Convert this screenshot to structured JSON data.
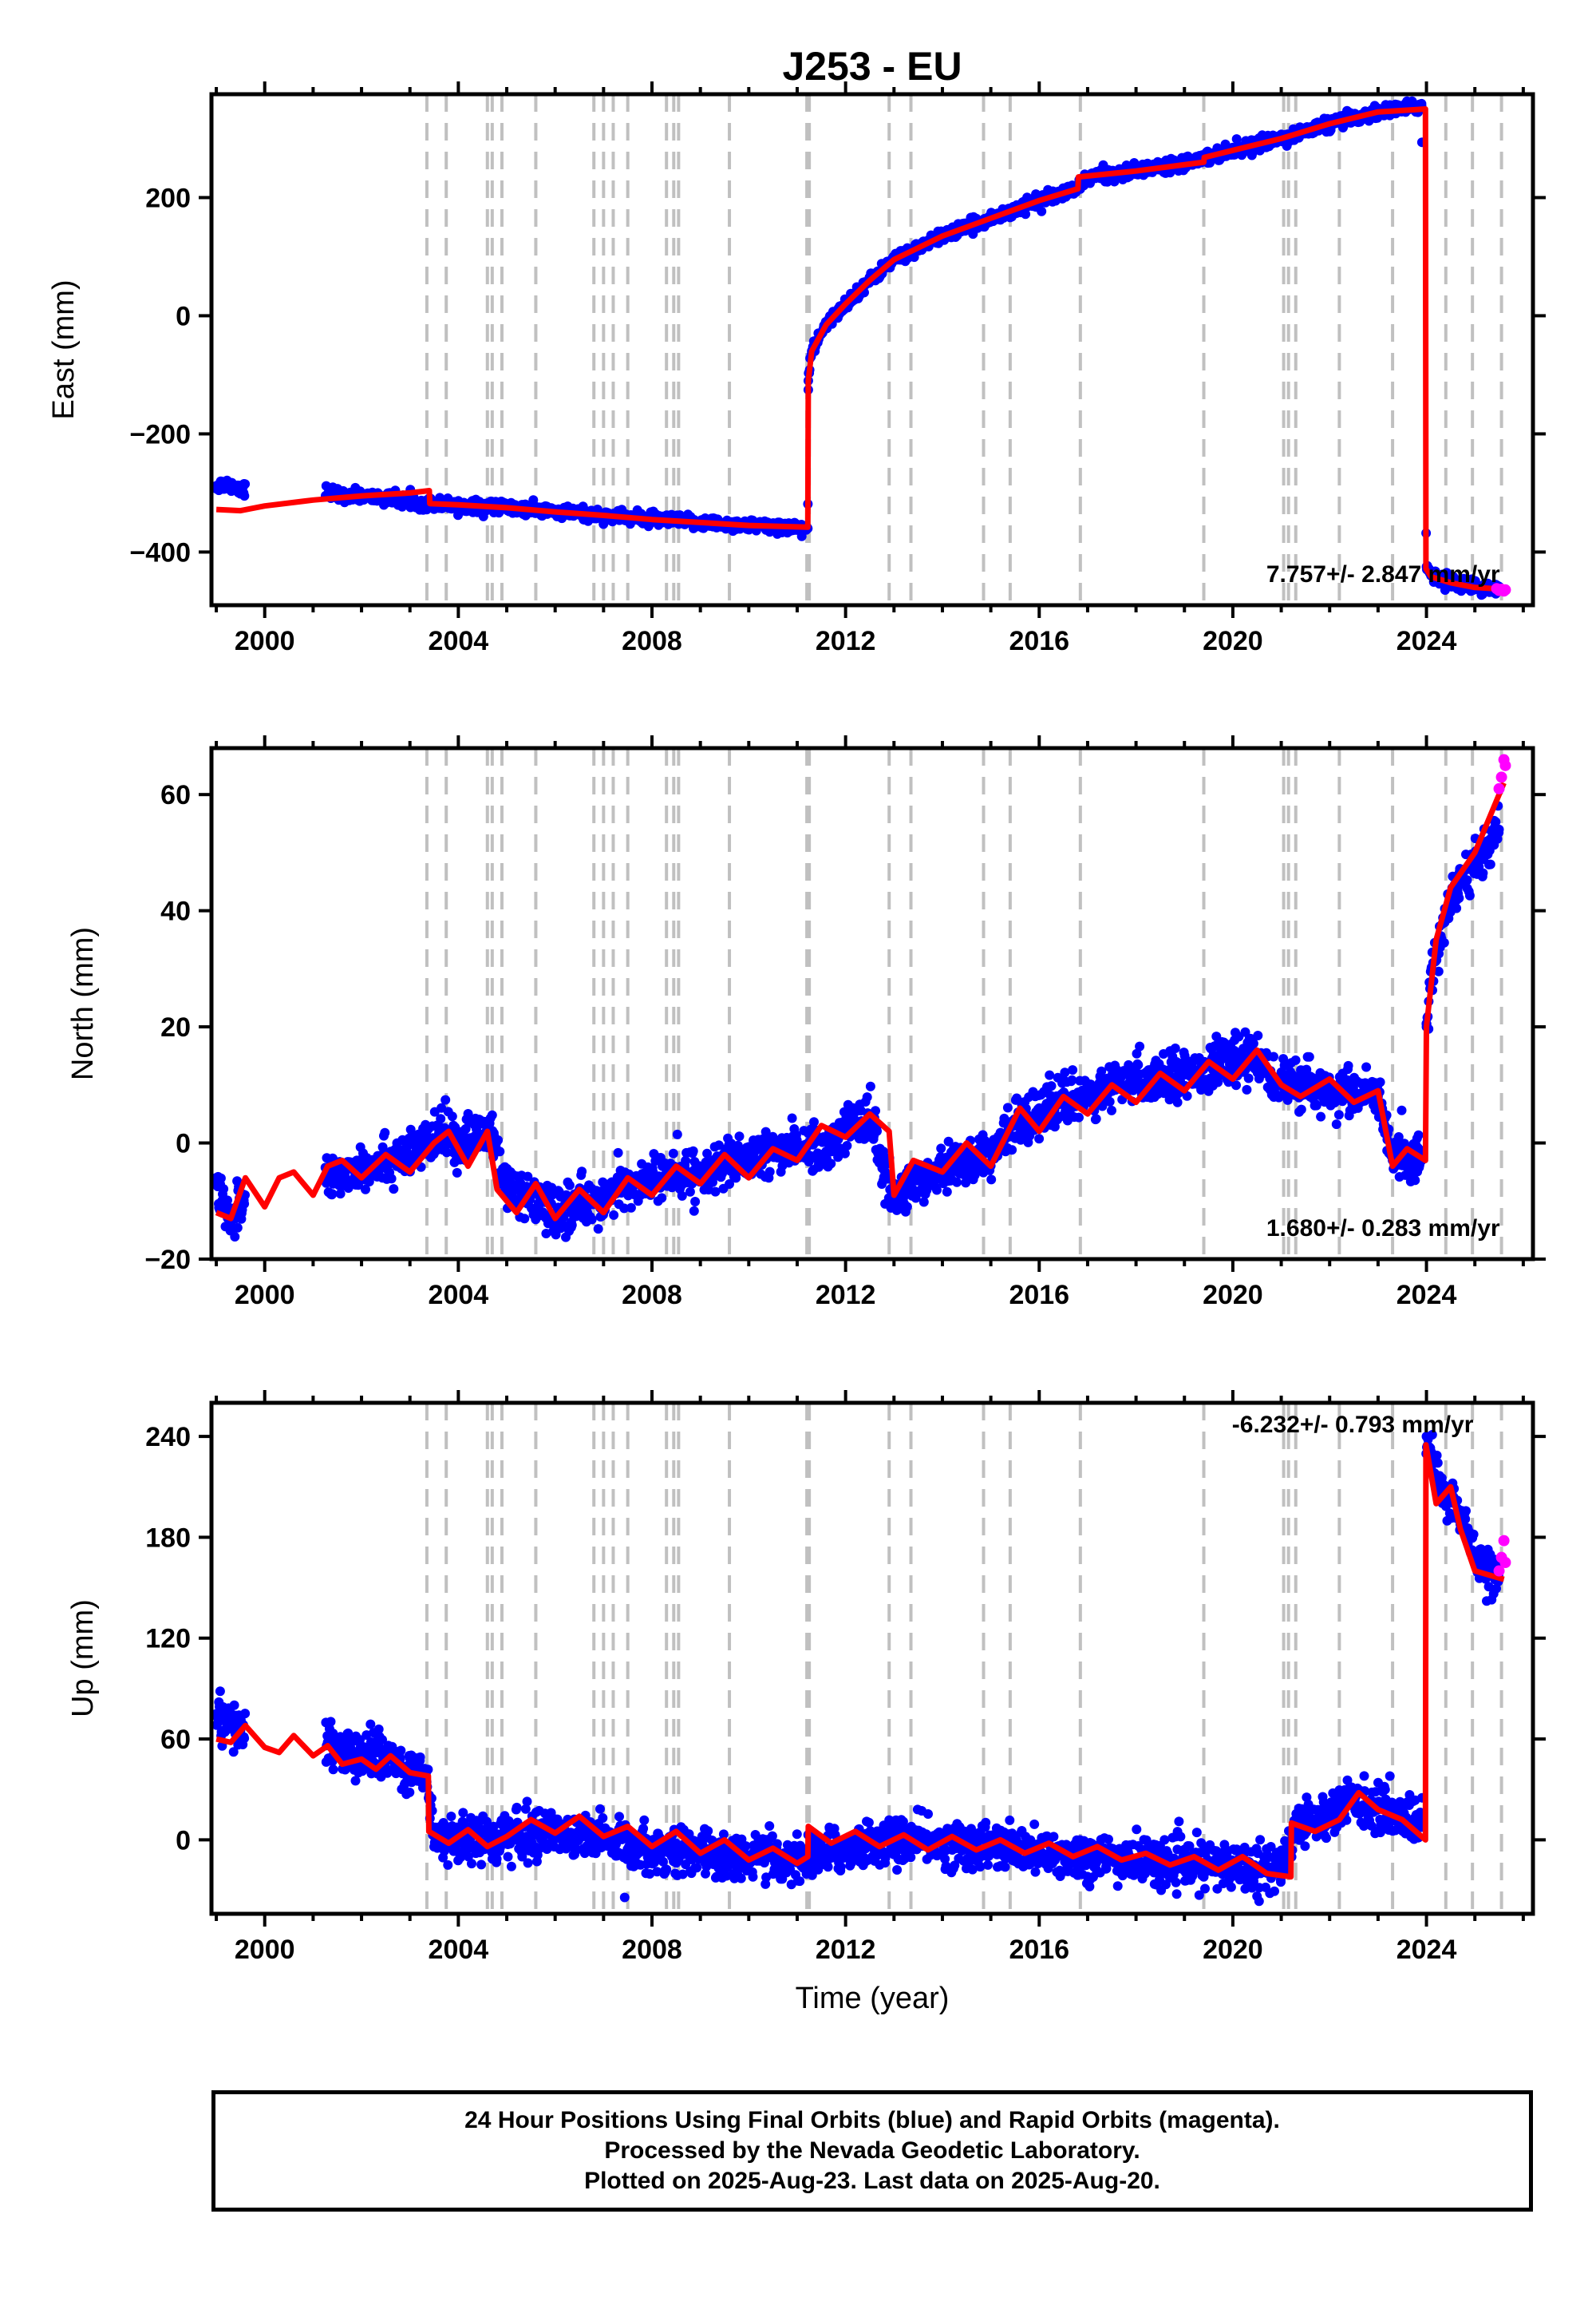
{
  "figure": {
    "title": "J253 - EU",
    "xlabel": "Time (year)",
    "caption": [
      "24 Hour Positions Using Final Orbits (blue) and Rapid Orbits (magenta).",
      "Processed by the Nevada Geodetic Laboratory.",
      "Plotted on 2025-Aug-23. Last data on 2025-Aug-20."
    ]
  },
  "colors": {
    "final": "#0000ff",
    "rapid": "#ff00ff",
    "model": "#ff0000",
    "event": "#c0c0c0"
  },
  "chart_data": [
    {
      "type": "scatter",
      "ylabel": "East (mm)",
      "rate_label": "7.757+/- 2.847 mm/yr",
      "xlim": [
        1998.9,
        2026.2
      ],
      "ylim": [
        -490,
        375
      ],
      "xticks": [
        2000,
        2004,
        2008,
        2012,
        2016,
        2020,
        2024
      ],
      "yticks": [
        -400,
        -200,
        0,
        200
      ],
      "series": [
        {
          "name": "Final Orbits",
          "role": "final",
          "x": [
            1999.0,
            1999.2,
            1999.5,
            2001.3,
            2002.0,
            2002.8,
            2003.4,
            2004.0,
            2005.0,
            2006.0,
            2007.0,
            2008.0,
            2009.0,
            2010.0,
            2011.0,
            2011.22,
            2011.23,
            2011.3,
            2011.6,
            2012.0,
            2012.5,
            2013.0,
            2014.0,
            2015.0,
            2016.0,
            2016.8,
            2017.0,
            2018.0,
            2019.0,
            2019.4,
            2020.0,
            2021.0,
            2022.0,
            2023.0,
            2023.9,
            2024.0,
            2024.1,
            2024.5,
            2025.0,
            2025.5
          ],
          "y": [
            -288,
            -285,
            -292,
            -302,
            -305,
            -312,
            -318,
            -320,
            -325,
            -332,
            -338,
            -345,
            -350,
            -355,
            -358,
            -360,
            -110,
            -60,
            -15,
            20,
            60,
            95,
            135,
            165,
            195,
            215,
            235,
            245,
            260,
            268,
            280,
            300,
            325,
            345,
            355,
            -425,
            -440,
            -450,
            -458,
            -462
          ]
        },
        {
          "name": "Rapid Orbits",
          "role": "rapid",
          "x": [
            2025.45,
            2025.5,
            2025.55,
            2025.6,
            2025.63
          ],
          "y": [
            -462,
            -465,
            -463,
            -466,
            -464
          ]
        },
        {
          "name": "Model",
          "role": "model",
          "x": [
            1999.0,
            1999.5,
            2000.0,
            2001.0,
            2002.0,
            2003.0,
            2003.4,
            2003.41,
            2004.0,
            2005.0,
            2006.0,
            2007.0,
            2008.0,
            2009.0,
            2010.0,
            2011.22,
            2011.23,
            2011.3,
            2011.6,
            2012.0,
            2012.5,
            2013.0,
            2014.0,
            2015.0,
            2016.0,
            2016.8,
            2016.81,
            2018.0,
            2019.4,
            2019.41,
            2020.0,
            2021.0,
            2022.0,
            2023.0,
            2023.98,
            2023.99,
            2024.1,
            2024.5,
            2025.0,
            2025.6
          ],
          "y": [
            -328,
            -330,
            -322,
            -312,
            -305,
            -300,
            -296,
            -318,
            -320,
            -325,
            -332,
            -338,
            -345,
            -350,
            -355,
            -358,
            -110,
            -60,
            -15,
            20,
            60,
            95,
            135,
            165,
            195,
            215,
            235,
            245,
            260,
            268,
            280,
            300,
            325,
            345,
            350,
            -428,
            -442,
            -452,
            -460,
            -463
          ]
        }
      ]
    },
    {
      "type": "scatter",
      "ylabel": "North (mm)",
      "rate_label": "1.680+/- 0.283 mm/yr",
      "xlim": [
        1998.9,
        2026.2
      ],
      "ylim": [
        -20,
        68
      ],
      "xticks": [
        2000,
        2004,
        2008,
        2012,
        2016,
        2020,
        2024
      ],
      "yticks": [
        -20,
        0,
        20,
        40,
        60
      ],
      "series": [
        {
          "name": "Final Orbits",
          "role": "final",
          "x": [
            1999.0,
            1999.3,
            1999.5,
            2001.3,
            2002.0,
            2003.0,
            2003.8,
            2004.0,
            2004.7,
            2005.0,
            2006.0,
            2007.0,
            2008.0,
            2009.0,
            2010.0,
            2011.0,
            2011.5,
            2012.0,
            2012.5,
            2013.0,
            2013.5,
            2014.0,
            2015.0,
            2015.5,
            2016.0,
            2017.0,
            2018.0,
            2019.0,
            2020.0,
            2020.5,
            2021.0,
            2022.0,
            2023.0,
            2023.3,
            2023.9,
            2024.0,
            2024.1,
            2024.5,
            2025.0,
            2025.5
          ],
          "y": [
            -6,
            -14,
            -10,
            -6,
            -4,
            -2,
            2,
            0,
            2,
            -8,
            -12,
            -9,
            -6,
            -5,
            -3,
            0,
            -2,
            3,
            4,
            -10,
            -6,
            -4,
            -2,
            3,
            6,
            8,
            11,
            12,
            14,
            15,
            10,
            9,
            8,
            -3,
            -2,
            20,
            30,
            42,
            48,
            54
          ]
        },
        {
          "name": "Rapid Orbits",
          "role": "rapid",
          "x": [
            2025.5,
            2025.55,
            2025.6,
            2025.63
          ],
          "y": [
            61,
            63,
            66,
            65
          ]
        },
        {
          "name": "Model",
          "role": "model",
          "x": [
            1999.0,
            1999.3,
            1999.6,
            2000.0,
            2000.3,
            2000.6,
            2001.0,
            2001.3,
            2001.6,
            2002.0,
            2002.5,
            2003.0,
            2003.5,
            2003.8,
            2004.2,
            2004.6,
            2004.8,
            2005.2,
            2005.6,
            2006.0,
            2006.5,
            2007.0,
            2007.5,
            2008.0,
            2008.5,
            2009.0,
            2009.5,
            2010.0,
            2010.5,
            2011.0,
            2011.5,
            2012.0,
            2012.5,
            2012.9,
            2013.0,
            2013.4,
            2014.0,
            2014.5,
            2015.0,
            2015.3,
            2015.6,
            2016.0,
            2016.5,
            2017.0,
            2017.5,
            2018.0,
            2018.5,
            2019.0,
            2019.5,
            2020.0,
            2020.5,
            2021.0,
            2021.4,
            2022.0,
            2022.5,
            2023.0,
            2023.3,
            2023.6,
            2023.98,
            2024.0,
            2024.2,
            2024.5,
            2025.0,
            2025.6
          ],
          "y": [
            -12,
            -13,
            -6,
            -11,
            -6,
            -5,
            -9,
            -4,
            -3,
            -6,
            -2,
            -5,
            0,
            2,
            -4,
            2,
            -8,
            -12,
            -7,
            -13,
            -8,
            -12,
            -6,
            -9,
            -4,
            -7,
            -2,
            -6,
            -1,
            -3,
            3,
            1,
            5,
            2,
            -9,
            -3,
            -5,
            0,
            -4,
            1,
            6,
            2,
            8,
            5,
            10,
            7,
            12,
            9,
            14,
            11,
            16,
            10,
            8,
            11,
            7,
            9,
            -4,
            -1,
            -3,
            20,
            35,
            44,
            50,
            62
          ]
        }
      ]
    },
    {
      "type": "scatter",
      "ylabel": "Up (mm)",
      "rate_label": "-6.232+/- 0.793 mm/yr",
      "xlim": [
        1998.9,
        2026.2
      ],
      "ylim": [
        -44,
        260
      ],
      "xticks": [
        2000,
        2004,
        2008,
        2012,
        2016,
        2020,
        2024
      ],
      "yticks": [
        0,
        60,
        120,
        180,
        240
      ],
      "series": [
        {
          "name": "Final Orbits",
          "role": "final",
          "x": [
            1999.0,
            1999.2,
            1999.5,
            2001.3,
            2001.8,
            2002.3,
            2002.8,
            2003.3,
            2003.5,
            2004.0,
            2005.0,
            2006.0,
            2007.0,
            2008.0,
            2009.0,
            2010.0,
            2011.0,
            2012.0,
            2013.0,
            2014.0,
            2015.0,
            2016.0,
            2017.0,
            2018.0,
            2019.0,
            2020.0,
            2021.0,
            2021.3,
            2022.0,
            2022.5,
            2023.0,
            2023.9,
            2024.0,
            2024.3,
            2024.6,
            2025.0,
            2025.5
          ],
          "y": [
            75,
            70,
            65,
            58,
            50,
            52,
            45,
            40,
            5,
            0,
            2,
            5,
            0,
            -5,
            -8,
            -10,
            -12,
            -5,
            0,
            -2,
            -4,
            -8,
            -10,
            -12,
            -15,
            -15,
            -18,
            10,
            15,
            25,
            18,
            10,
            240,
            205,
            200,
            170,
            155
          ]
        },
        {
          "name": "Rapid Orbits",
          "role": "rapid",
          "x": [
            2025.5,
            2025.55,
            2025.6,
            2025.63
          ],
          "y": [
            160,
            168,
            178,
            165
          ]
        },
        {
          "name": "Model",
          "role": "model",
          "x": [
            1999.0,
            1999.3,
            1999.6,
            2000.0,
            2000.3,
            2000.6,
            2001.0,
            2001.3,
            2001.6,
            2002.0,
            2002.3,
            2002.6,
            2003.0,
            2003.38,
            2003.39,
            2003.8,
            2004.2,
            2004.6,
            2005.0,
            2005.5,
            2006.0,
            2006.5,
            2007.0,
            2007.5,
            2008.0,
            2008.5,
            2009.0,
            2009.5,
            2010.0,
            2010.5,
            2011.0,
            2011.22,
            2011.23,
            2011.7,
            2012.2,
            2012.7,
            2013.2,
            2013.7,
            2014.2,
            2014.7,
            2015.2,
            2015.7,
            2016.2,
            2016.7,
            2017.2,
            2017.7,
            2018.2,
            2018.7,
            2019.2,
            2019.7,
            2020.2,
            2020.7,
            2021.2,
            2021.21,
            2021.7,
            2022.2,
            2022.6,
            2023.0,
            2023.5,
            2023.98,
            2023.99,
            2024.2,
            2024.5,
            2024.7,
            2025.0,
            2025.6
          ],
          "y": [
            60,
            58,
            68,
            55,
            52,
            62,
            50,
            56,
            45,
            48,
            42,
            50,
            40,
            38,
            5,
            -2,
            6,
            -4,
            2,
            12,
            4,
            14,
            2,
            8,
            -4,
            5,
            -8,
            0,
            -12,
            -5,
            -14,
            -10,
            8,
            -2,
            5,
            -4,
            3,
            -6,
            2,
            -6,
            0,
            -8,
            -2,
            -10,
            -4,
            -12,
            -8,
            -15,
            -10,
            -18,
            -10,
            -20,
            -22,
            10,
            5,
            12,
            28,
            18,
            12,
            0,
            235,
            200,
            210,
            185,
            160,
            155
          ]
        }
      ]
    }
  ]
}
